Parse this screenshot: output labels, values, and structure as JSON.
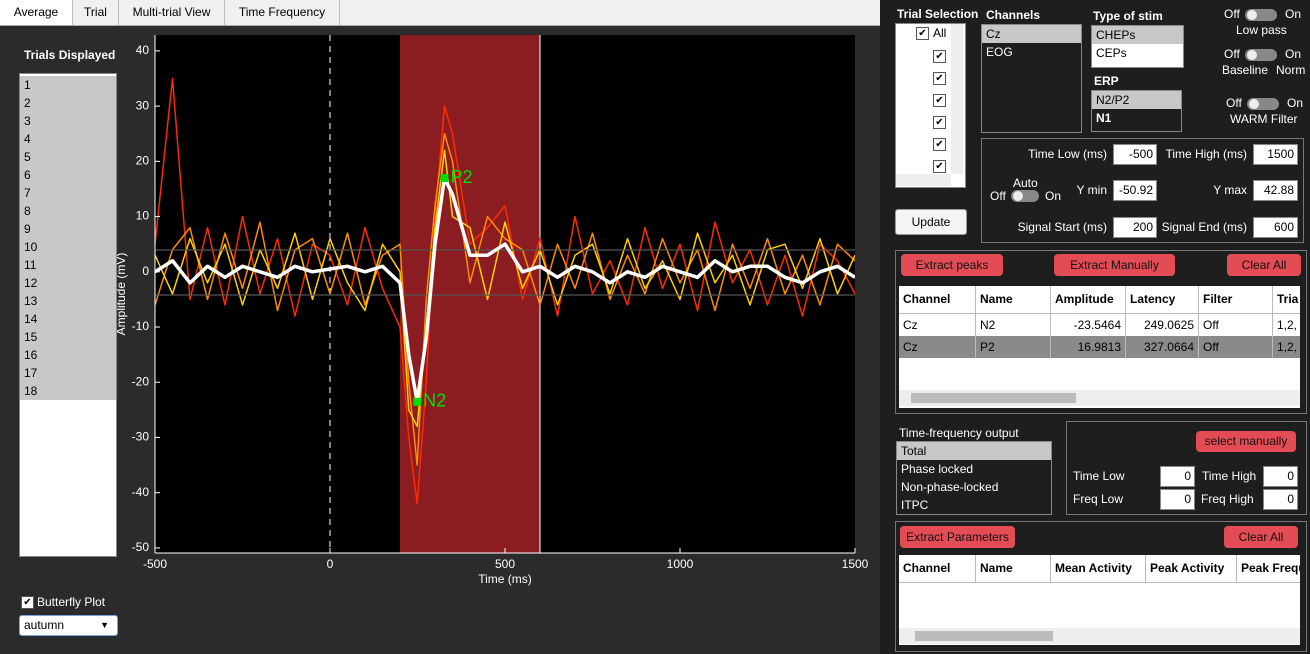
{
  "tabs": [
    "Average",
    "Trial",
    "Multi-trial View",
    "Time Frequency"
  ],
  "trials_panel": {
    "title": "Trials Displayed",
    "items": [
      1,
      2,
      3,
      4,
      5,
      6,
      7,
      8,
      9,
      10,
      11,
      12,
      13,
      14,
      15,
      16,
      17,
      18
    ]
  },
  "butterfly_plot": {
    "label": "Butterfly Plot",
    "checked": true
  },
  "colormap": "autumn",
  "plot": {
    "xlabel": "Time (ms)",
    "ylabel": "Amplitude (mV)",
    "xticks": [
      -500,
      0,
      500,
      1000,
      1500
    ],
    "yticks": [
      -50,
      -40,
      -30,
      -20,
      -10,
      0,
      10,
      20,
      30,
      40
    ],
    "zero_line": 0,
    "thresholds": [
      3.95,
      -4.2
    ],
    "window_color": "#8b1c22",
    "peak_color": "#00e000",
    "x": [
      -500,
      -450,
      -400,
      -350,
      -300,
      -250,
      -200,
      -150,
      -100,
      -50,
      0,
      50,
      100,
      150,
      200,
      225,
      249.0625,
      275,
      300,
      327.0664,
      350,
      400,
      450,
      500,
      550,
      600,
      650,
      700,
      750,
      800,
      850,
      900,
      950,
      1000,
      1050,
      1100,
      1150,
      1200,
      1250,
      1300,
      1350,
      1400,
      1450,
      1500
    ],
    "trials": [
      {
        "color": "#ff2a00",
        "values": [
          5,
          35,
          -5,
          8,
          -6,
          10,
          -4,
          6,
          -8,
          5,
          3,
          -6,
          8,
          -3,
          -10,
          -30,
          -42,
          -20,
          10,
          30,
          25,
          5,
          8,
          12,
          -5,
          6,
          -8,
          10,
          -4,
          2,
          -6,
          8,
          -3,
          5,
          -7,
          9,
          -2,
          4,
          -6,
          3,
          -8,
          5,
          2,
          -4
        ]
      },
      {
        "color": "#ff8c00",
        "values": [
          -6,
          4,
          8,
          -5,
          7,
          -3,
          9,
          -7,
          4,
          6,
          -4,
          7,
          -6,
          3,
          5,
          -20,
          -35,
          -5,
          12,
          25,
          20,
          -2,
          10,
          6,
          4,
          -6,
          5,
          -3,
          7,
          -5,
          3,
          -4,
          6,
          -2,
          4,
          -7,
          5,
          -3,
          6,
          -4,
          3,
          -6,
          5,
          2
        ]
      },
      {
        "color": "#ffd000",
        "values": [
          3,
          -4,
          6,
          -2,
          5,
          -6,
          4,
          -3,
          7,
          -5,
          6,
          -2,
          -7,
          5,
          0,
          -25,
          -28,
          -10,
          8,
          22,
          10,
          8,
          -5,
          9,
          -3,
          4,
          -6,
          3,
          5,
          -4,
          6,
          -3,
          2,
          -5,
          7,
          -2,
          3,
          -6,
          4,
          5,
          -3,
          6,
          -4,
          3
        ]
      }
    ],
    "average": {
      "color": "#ffffff",
      "values": [
        0,
        2,
        -2,
        1,
        -1,
        1,
        0,
        -1,
        1,
        0,
        0.5,
        1,
        0,
        1,
        -2,
        -15,
        -23.5,
        -12,
        5,
        17,
        14,
        3,
        3,
        5,
        0,
        1,
        -1,
        1,
        0,
        -2,
        0,
        -1,
        1,
        0,
        -1,
        2,
        0,
        1,
        1,
        -1,
        -2,
        0,
        1,
        -1
      ]
    }
  },
  "trial_selection": {
    "title": "Trial Selection",
    "all_label": "All",
    "checked": [
      true,
      true,
      true,
      true,
      true,
      true
    ]
  },
  "channels": {
    "title": "Channels",
    "items": [
      "Cz",
      "EOG"
    ]
  },
  "stim": {
    "title": "Type of stim",
    "items": [
      "CHEPs",
      "CEPs"
    ]
  },
  "erp": {
    "title": "ERP",
    "items": [
      "N2/P2",
      "N1"
    ]
  },
  "switches": [
    {
      "off": "Off",
      "on": "On",
      "label": "Low pass"
    },
    {
      "off": "Off",
      "on": "On",
      "label": "Baseline",
      "label2": "Norm"
    },
    {
      "off": "Off",
      "on": "On",
      "label": "WARM Filter"
    }
  ],
  "update": "Update",
  "params": {
    "time_low": {
      "label": "Time Low (ms)",
      "value": -500
    },
    "time_high": {
      "label": "Time High (ms)",
      "value": 1500
    },
    "auto": {
      "label": "Auto",
      "off": "Off",
      "on": "On"
    },
    "y_min": {
      "label": "Y min",
      "value": -50.92
    },
    "y_max": {
      "label": "Y max",
      "value": 42.88
    },
    "signal_start": {
      "label": "Signal Start (ms)",
      "value": 200
    },
    "signal_end": {
      "label": "Signal End (ms)",
      "value": 600
    }
  },
  "peaks": {
    "buttons": [
      "Extract peaks",
      "Extract Manually",
      "Clear All"
    ],
    "headers": [
      "Channel",
      "Name",
      "Amplitude",
      "Latency",
      "Filter",
      "Tria"
    ],
    "rows": [
      [
        "Cz",
        "N2",
        -23.5464,
        249.0625,
        "Off",
        "1,2,"
      ],
      [
        "Cz",
        "P2",
        16.9813,
        327.0664,
        "Off",
        "1,2,"
      ]
    ]
  },
  "tf": {
    "title": "Time-frequency output",
    "items": [
      "Total",
      "Phase locked",
      "Non-phase-locked",
      "ITPC"
    ],
    "button": "select manually",
    "time_low": {
      "label": "Time Low",
      "value": 0
    },
    "time_high": {
      "label": "Time High",
      "value": 0
    },
    "freq_low": {
      "label": "Freq Low",
      "value": 0
    },
    "freq_high": {
      "label": "Freq High",
      "value": 0
    }
  },
  "tf_table": {
    "buttons": [
      "Extract Parameters",
      "Clear All"
    ],
    "headers": [
      "Channel",
      "Name",
      "Mean Activity",
      "Peak Activity",
      "Peak Frequ"
    ]
  }
}
